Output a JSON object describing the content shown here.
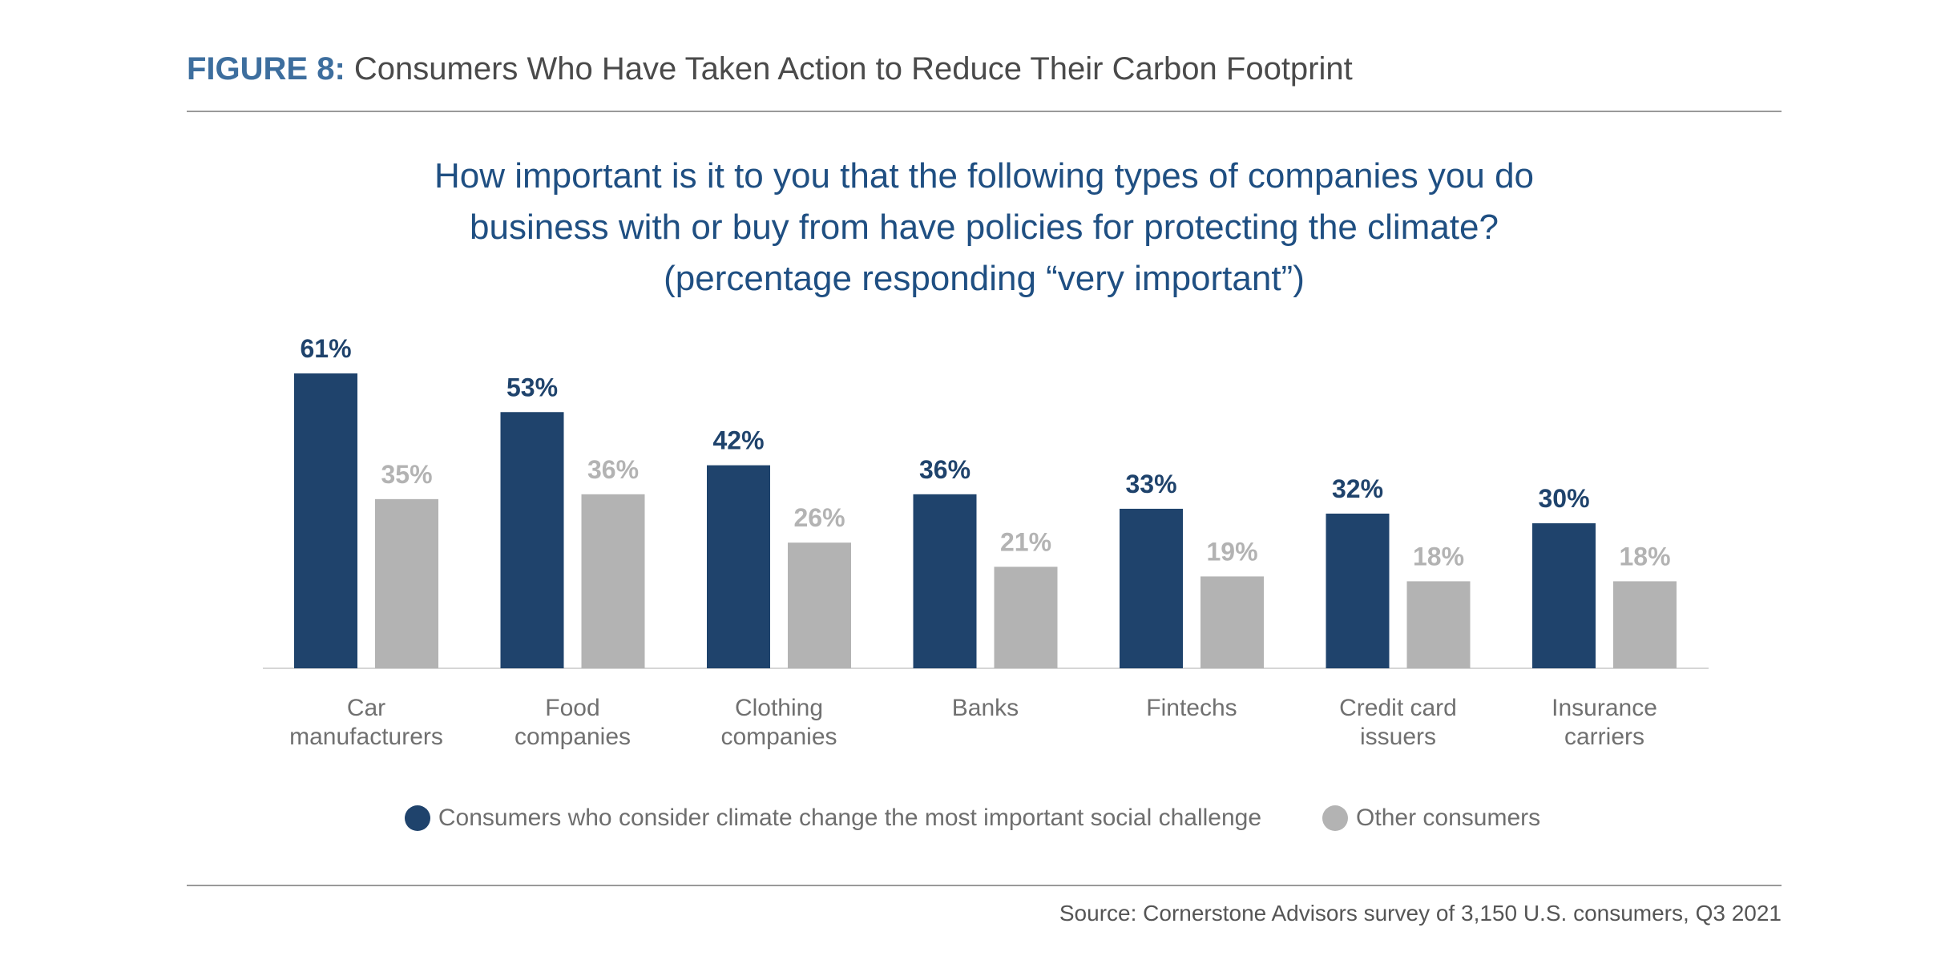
{
  "header": {
    "figure_label": "FIGURE 8:",
    "figure_title": "Consumers Who Have Taken Action to Reduce Their Carbon Footprint"
  },
  "question": {
    "line1": "How important is it to you that the following types of companies you do",
    "line2": "business with or buy from have policies for protecting the climate?",
    "line3": "(percentage responding “very important”)"
  },
  "chart_data": {
    "type": "bar",
    "categories": [
      [
        "Car",
        "manufacturers"
      ],
      [
        "Food",
        "companies"
      ],
      [
        "Clothing",
        "companies"
      ],
      [
        "Banks"
      ],
      [
        "Fintechs"
      ],
      [
        "Credit card",
        "issuers"
      ],
      [
        "Insurance",
        "carriers"
      ]
    ],
    "series": [
      {
        "name": "Consumers who consider climate change the most important social challenge",
        "color": "#1f436c",
        "label_color": "#1f436c",
        "values": [
          61,
          53,
          42,
          36,
          33,
          32,
          30
        ],
        "labels": [
          "61%",
          "53%",
          "42%",
          "36%",
          "33%",
          "32%",
          "30%"
        ]
      },
      {
        "name": "Other consumers",
        "color": "#b3b3b3",
        "label_color": "#b3b3b3",
        "values": [
          35,
          36,
          26,
          21,
          19,
          18,
          18
        ],
        "labels": [
          "35%",
          "36%",
          "26%",
          "21%",
          "19%",
          "18%",
          "18%"
        ]
      }
    ],
    "ylim": [
      0,
      61
    ],
    "grid": false,
    "legend_position": "bottom"
  },
  "legend": {
    "series1_label": "Consumers who consider climate change the most important social challenge",
    "series2_label": "Other consumers"
  },
  "footer": {
    "source": "Source: Cornerstone Advisors survey of 3,150 U.S. consumers, Q3 2021"
  }
}
